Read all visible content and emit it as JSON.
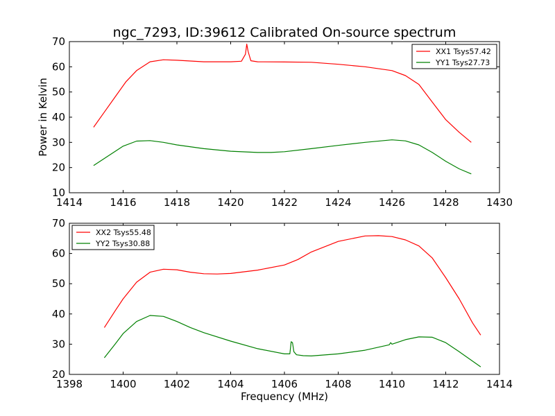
{
  "chart_data": [
    {
      "type": "line",
      "title": "ngc_7293, ID:39612 Calibrated On-source spectrum",
      "xlabel": "",
      "ylabel": "Power in Kelvin",
      "xlim": [
        1414,
        1430
      ],
      "ylim": [
        10,
        70
      ],
      "xticks": [
        1414,
        1416,
        1418,
        1420,
        1422,
        1424,
        1426,
        1428,
        1430
      ],
      "yticks": [
        10,
        20,
        30,
        40,
        50,
        60,
        70
      ],
      "grid": false,
      "legend_position": "top-right",
      "series": [
        {
          "name": "XX1 Tsys57.42",
          "color": "#ff0000",
          "x": [
            1414.9,
            1415.3,
            1415.7,
            1416.1,
            1416.5,
            1417.0,
            1417.5,
            1418.0,
            1419.0,
            1420.0,
            1420.4,
            1420.55,
            1420.6,
            1420.65,
            1420.75,
            1421.0,
            1422.0,
            1423.0,
            1424.0,
            1425.0,
            1426.0,
            1426.5,
            1427.0,
            1427.5,
            1428.0,
            1428.5,
            1428.95
          ],
          "y": [
            36.0,
            42.0,
            48.0,
            54.0,
            58.5,
            62.0,
            62.8,
            62.6,
            62.0,
            62.0,
            62.2,
            65.0,
            69.0,
            66.0,
            62.4,
            62.0,
            61.9,
            61.8,
            61.0,
            60.0,
            58.5,
            56.5,
            53.0,
            46.0,
            39.0,
            34.0,
            30.0
          ]
        },
        {
          "name": "YY1 Tsys27.73",
          "color": "#008000",
          "x": [
            1414.9,
            1415.5,
            1416.0,
            1416.5,
            1417.0,
            1417.5,
            1418.0,
            1419.0,
            1420.0,
            1421.0,
            1421.5,
            1422.0,
            1423.0,
            1424.0,
            1425.0,
            1426.0,
            1426.5,
            1427.0,
            1427.5,
            1428.0,
            1428.5,
            1428.95
          ],
          "y": [
            20.8,
            25.0,
            28.5,
            30.5,
            30.7,
            30.0,
            29.0,
            27.5,
            26.5,
            26.0,
            26.0,
            26.3,
            27.5,
            28.8,
            30.0,
            31.0,
            30.6,
            29.0,
            26.0,
            22.5,
            19.5,
            17.5
          ]
        }
      ]
    },
    {
      "type": "line",
      "title": "",
      "xlabel": "Frequency (MHz)",
      "ylabel": "",
      "xlim": [
        1398,
        1414
      ],
      "ylim": [
        20,
        70
      ],
      "xticks": [
        1398,
        1400,
        1402,
        1404,
        1406,
        1408,
        1410,
        1412,
        1414
      ],
      "yticks": [
        20,
        30,
        40,
        50,
        60,
        70
      ],
      "grid": false,
      "legend_position": "top-left",
      "series": [
        {
          "name": "XX2 Tsys55.48",
          "color": "#ff0000",
          "x": [
            1399.3,
            1399.7,
            1400.0,
            1400.5,
            1401.0,
            1401.5,
            1402.0,
            1402.5,
            1403.0,
            1403.5,
            1404.0,
            1405.0,
            1406.0,
            1406.5,
            1407.0,
            1408.0,
            1409.0,
            1409.5,
            1410.0,
            1410.5,
            1411.0,
            1411.5,
            1412.0,
            1412.5,
            1413.0,
            1413.3
          ],
          "y": [
            35.5,
            41.0,
            45.0,
            50.5,
            53.8,
            54.8,
            54.6,
            53.8,
            53.3,
            53.2,
            53.4,
            54.5,
            56.2,
            58.0,
            60.5,
            64.0,
            65.8,
            65.9,
            65.6,
            64.5,
            62.5,
            58.5,
            52.0,
            45.0,
            37.0,
            33.0
          ]
        },
        {
          "name": "YY2 Tsys30.88",
          "color": "#008000",
          "x": [
            1399.3,
            1399.7,
            1400.0,
            1400.5,
            1401.0,
            1401.5,
            1402.0,
            1402.5,
            1403.0,
            1404.0,
            1405.0,
            1406.0,
            1406.2,
            1406.25,
            1406.3,
            1406.35,
            1406.45,
            1406.7,
            1407.0,
            1408.0,
            1409.0,
            1409.9,
            1409.95,
            1410.0,
            1410.5,
            1411.0,
            1411.5,
            1412.0,
            1412.5,
            1413.3
          ],
          "y": [
            25.5,
            30.0,
            33.5,
            37.5,
            39.5,
            39.2,
            37.5,
            35.5,
            33.8,
            31.0,
            28.5,
            26.8,
            26.8,
            30.8,
            30.5,
            27.5,
            26.5,
            26.2,
            26.1,
            26.8,
            28.0,
            29.8,
            30.5,
            30.0,
            31.5,
            32.4,
            32.3,
            30.5,
            27.5,
            22.5
          ]
        }
      ]
    }
  ]
}
